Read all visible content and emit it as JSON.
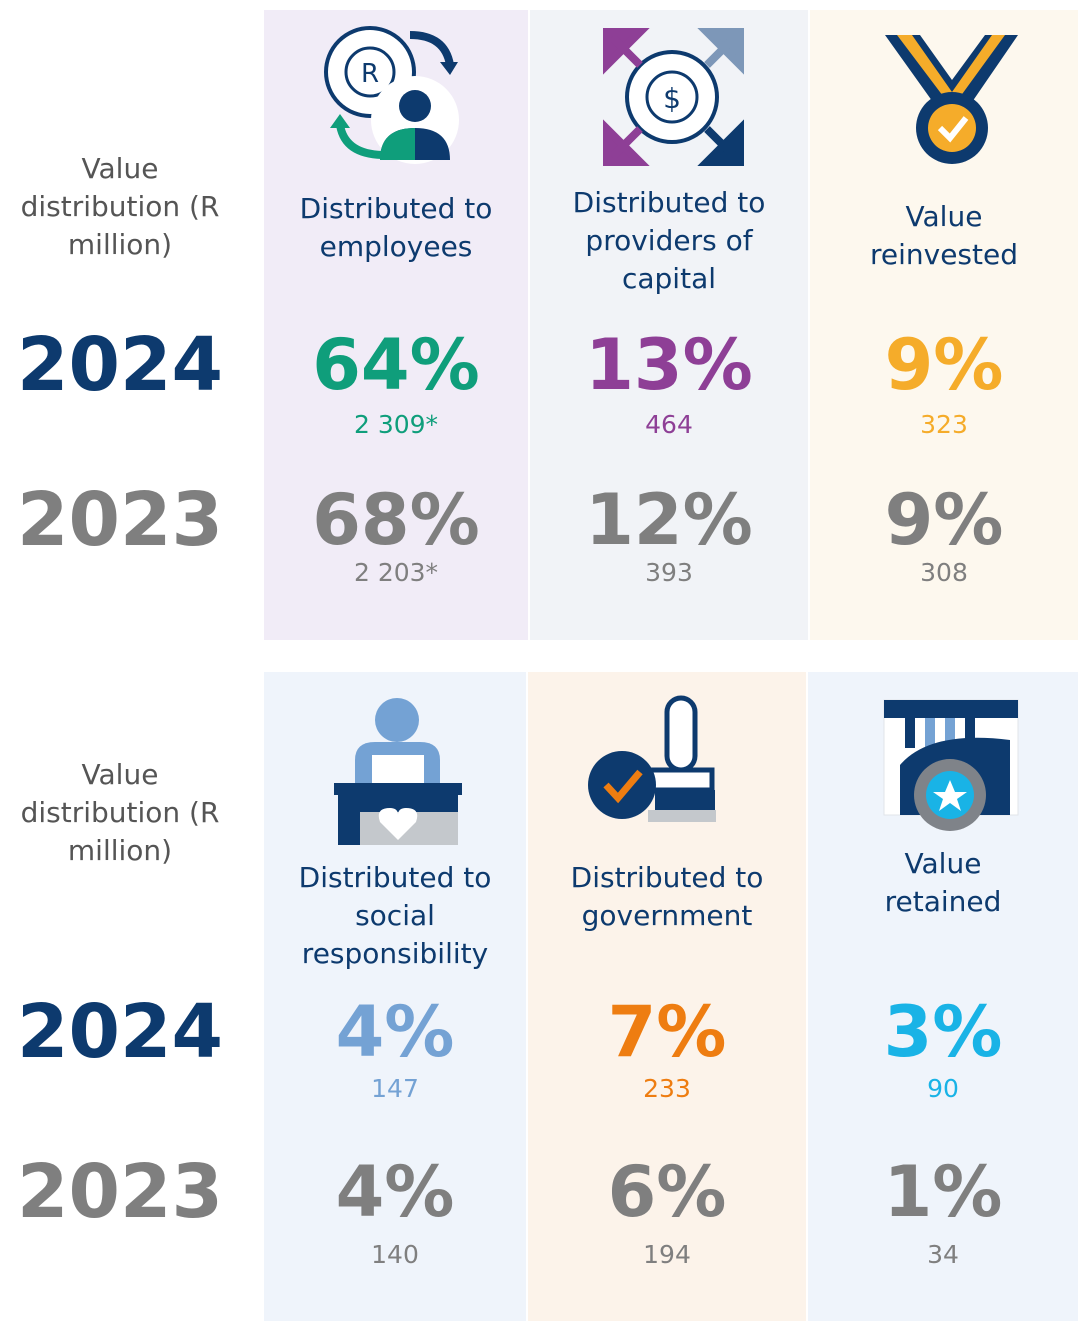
{
  "panels": [
    {
      "label": "Value distribution (R million)",
      "years": [
        "2024",
        "2023"
      ],
      "columns": [
        {
          "label": "Distributed to employees",
          "color": "#0f9e7b",
          "values": [
            {
              "pct": "64%",
              "amount": "2 309*"
            },
            {
              "pct": "68%",
              "amount": "2 203*"
            }
          ]
        },
        {
          "label": "Distributed to providers of capital",
          "color": "#8e3f96",
          "values": [
            {
              "pct": "13%",
              "amount": "464"
            },
            {
              "pct": "12%",
              "amount": "393"
            }
          ]
        },
        {
          "label": "Value reinvested",
          "color": "#f5ac2a",
          "values": [
            {
              "pct": "9%",
              "amount": "323"
            },
            {
              "pct": "9%",
              "amount": "308"
            }
          ]
        }
      ]
    },
    {
      "label": "Value distribution (R million)",
      "years": [
        "2024",
        "2023"
      ],
      "columns": [
        {
          "label": "Distributed to social responsibility",
          "color": "#74a2d4",
          "values": [
            {
              "pct": "4%",
              "amount": "147"
            },
            {
              "pct": "4%",
              "amount": "140"
            }
          ]
        },
        {
          "label": "Distributed to government",
          "color": "#ee7d11",
          "values": [
            {
              "pct": "7%",
              "amount": "233"
            },
            {
              "pct": "6%",
              "amount": "194"
            }
          ]
        },
        {
          "label": "Value retained",
          "color": "#19b3e6",
          "values": [
            {
              "pct": "3%",
              "amount": "90"
            },
            {
              "pct": "1%",
              "amount": "34"
            }
          ]
        }
      ]
    }
  ]
}
